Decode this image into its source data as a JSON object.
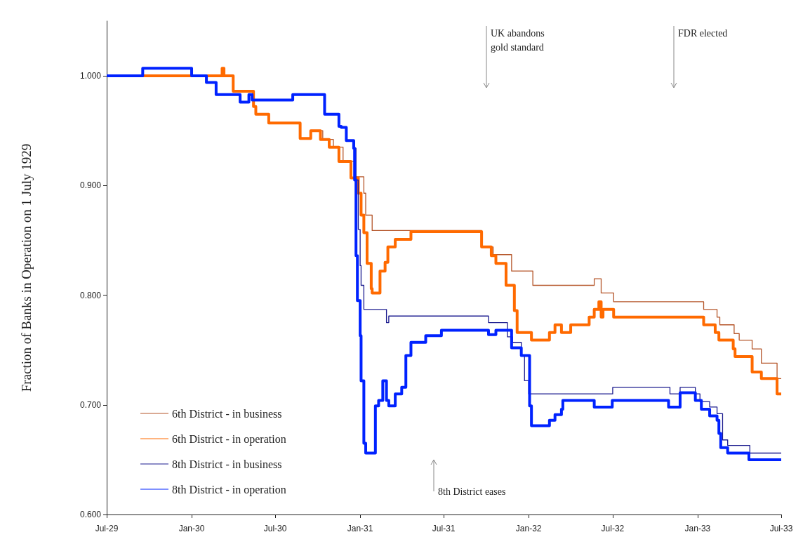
{
  "chart_data": {
    "type": "step",
    "ylabel": "Fraction of Banks in Operation on 1 July 1929",
    "xlim": [
      "1929-07-01",
      "1933-07-01"
    ],
    "xticks": [
      {
        "value": "1929-07-01",
        "label": "Jul-29"
      },
      {
        "value": "1930-01-01",
        "label": "Jan-30"
      },
      {
        "value": "1930-07-01",
        "label": "Jul-30"
      },
      {
        "value": "1931-01-01",
        "label": "Jan-31"
      },
      {
        "value": "1931-07-01",
        "label": "Jul-31"
      },
      {
        "value": "1932-01-01",
        "label": "Jan-32"
      },
      {
        "value": "1932-07-01",
        "label": "Jul-32"
      },
      {
        "value": "1933-01-01",
        "label": "Jan-33"
      },
      {
        "value": "1933-07-01",
        "label": "Jul-33"
      }
    ],
    "ylim": [
      0.6,
      1.05
    ],
    "yticks": [
      {
        "value": 0.6,
        "label": "0.600"
      },
      {
        "value": 0.7,
        "label": "0.700"
      },
      {
        "value": 0.8,
        "label": "0.800"
      },
      {
        "value": 0.9,
        "label": "0.900"
      },
      {
        "value": 1.0,
        "label": "1.000"
      }
    ],
    "grid": false,
    "legend": "bottom left",
    "marker": "none",
    "line_style": "solid",
    "annotations": [
      "UK abandons\ngold standard",
      "FDR elected",
      "8th District eases"
    ],
    "series": [
      {
        "name": "6th District - in business",
        "color": "#b5562a",
        "x": [
          "1930-09-16",
          "1930-10-12",
          "1930-11-04",
          "1930-11-25",
          "1930-12-19",
          "1931-01-09",
          "1931-01-13",
          "1931-01-27",
          "1931-09-21",
          "1931-10-16",
          "1931-11-25",
          "1932-01-10",
          "1932-05-22",
          "1932-06-06",
          "1932-07-03",
          "1933-01-14",
          "1933-02-12",
          "1933-02-18",
          "1933-03-21",
          "1933-04-01",
          "1933-04-29",
          "1933-05-19",
          "1933-06-22",
          "1933-07-01"
        ],
        "values": [
          0.95,
          0.942,
          0.935,
          0.922,
          0.908,
          0.893,
          0.873,
          0.859,
          0.844,
          0.837,
          0.822,
          0.809,
          0.815,
          0.802,
          0.794,
          0.787,
          0.78,
          0.773,
          0.765,
          0.759,
          0.751,
          0.738,
          0.724,
          0.724
        ]
      },
      {
        "name": "6th District - in operation",
        "color": "#ff6a00",
        "x": [
          "1929-07-01",
          "1930-03-08",
          "1930-03-12",
          "1930-04-01",
          "1930-05-15",
          "1930-05-20",
          "1930-06-17",
          "1930-08-24",
          "1930-09-16",
          "1930-10-07",
          "1930-10-26",
          "1930-11-16",
          "1930-12-12",
          "1930-12-28",
          "1931-01-03",
          "1931-01-09",
          "1931-01-16",
          "1931-01-25",
          "1931-01-27",
          "1931-02-13",
          "1931-02-24",
          "1931-03-02",
          "1931-03-18",
          "1931-04-21",
          "1931-09-21",
          "1931-10-12",
          "1931-10-22",
          "1931-11-13",
          "1931-12-01",
          "1931-12-07",
          "1932-01-07",
          "1932-02-15",
          "1932-02-27",
          "1932-03-12",
          "1932-04-01",
          "1932-05-11",
          "1932-05-22",
          "1932-06-01",
          "1932-06-06",
          "1932-06-10",
          "1932-07-03",
          "1933-01-14",
          "1933-02-08",
          "1933-02-16",
          "1933-03-19",
          "1933-03-23",
          "1933-04-29",
          "1933-05-19",
          "1933-06-22",
          "1933-07-01"
        ],
        "values": [
          1.0,
          1.007,
          1.0,
          0.986,
          0.972,
          0.965,
          0.957,
          0.943,
          0.95,
          0.942,
          0.935,
          0.922,
          0.907,
          0.893,
          0.873,
          0.857,
          0.829,
          0.806,
          0.802,
          0.822,
          0.83,
          0.844,
          0.851,
          0.858,
          0.844,
          0.836,
          0.829,
          0.809,
          0.786,
          0.766,
          0.759,
          0.766,
          0.773,
          0.766,
          0.773,
          0.78,
          0.787,
          0.794,
          0.78,
          0.787,
          0.78,
          0.773,
          0.766,
          0.759,
          0.751,
          0.744,
          0.73,
          0.724,
          0.71,
          0.71
        ]
      },
      {
        "name": "8th District - in business",
        "color": "#1c1c8f",
        "x": [
          "1930-05-05",
          "1930-05-12",
          "1930-08-08",
          "1930-10-16",
          "1930-11-16",
          "1930-11-21",
          "1930-12-02",
          "1930-12-20",
          "1930-12-23",
          "1930-12-28",
          "1931-01-01",
          "1931-01-03",
          "1931-01-09",
          "1931-02-27",
          "1931-03-04",
          "1931-10-06",
          "1931-11-16",
          "1931-11-27",
          "1931-12-16",
          "1931-12-23",
          "1932-01-01",
          "1932-07-01",
          "1932-11-02",
          "1932-11-24",
          "1932-12-27",
          "1933-01-06",
          "1933-01-27",
          "1933-02-12",
          "1933-02-24",
          "1933-03-07",
          "1933-04-24",
          "1933-07-01"
        ],
        "values": [
          0.983,
          0.978,
          0.983,
          0.965,
          0.954,
          0.953,
          0.941,
          0.934,
          0.905,
          0.86,
          0.827,
          0.809,
          0.787,
          0.775,
          0.781,
          0.775,
          0.762,
          0.757,
          0.745,
          0.722,
          0.71,
          0.716,
          0.71,
          0.716,
          0.71,
          0.703,
          0.698,
          0.692,
          0.668,
          0.663,
          0.656,
          0.656
        ]
      },
      {
        "name": "8th District - in operation",
        "color": "#0022ff",
        "x": [
          "1929-07-01",
          "1929-09-17",
          "1930-01-01",
          "1930-02-02",
          "1930-02-23",
          "1930-04-16",
          "1930-05-05",
          "1930-05-12",
          "1930-08-08",
          "1930-10-16",
          "1930-11-16",
          "1930-11-21",
          "1930-12-02",
          "1930-12-18",
          "1930-12-20",
          "1930-12-23",
          "1930-12-26",
          "1931-01-01",
          "1931-01-03",
          "1931-01-09",
          "1931-01-13",
          "1931-02-03",
          "1931-02-10",
          "1931-02-19",
          "1931-02-27",
          "1931-03-04",
          "1931-03-18",
          "1931-04-01",
          "1931-04-10",
          "1931-04-21",
          "1931-05-23",
          "1931-06-26",
          "1931-10-06",
          "1931-10-22",
          "1931-11-25",
          "1931-12-16",
          "1932-01-03",
          "1932-01-07",
          "1932-02-15",
          "1932-02-27",
          "1932-03-12",
          "1932-03-15",
          "1932-05-22",
          "1932-06-30",
          "1932-10-30",
          "1932-11-24",
          "1932-12-27",
          "1933-01-09",
          "1933-01-27",
          "1933-02-12",
          "1933-02-16",
          "1933-02-20",
          "1933-03-07",
          "1933-04-22",
          "1933-07-01"
        ],
        "values": [
          1.0,
          1.007,
          1.0,
          0.994,
          0.983,
          0.976,
          0.983,
          0.978,
          0.983,
          0.965,
          0.954,
          0.953,
          0.941,
          0.934,
          0.905,
          0.836,
          0.795,
          0.763,
          0.722,
          0.665,
          0.656,
          0.699,
          0.704,
          0.722,
          0.704,
          0.699,
          0.71,
          0.716,
          0.745,
          0.757,
          0.763,
          0.768,
          0.764,
          0.768,
          0.752,
          0.745,
          0.699,
          0.681,
          0.686,
          0.691,
          0.696,
          0.704,
          0.698,
          0.704,
          0.698,
          0.711,
          0.704,
          0.696,
          0.69,
          0.686,
          0.674,
          0.661,
          0.656,
          0.65,
          0.65
        ]
      }
    ]
  }
}
